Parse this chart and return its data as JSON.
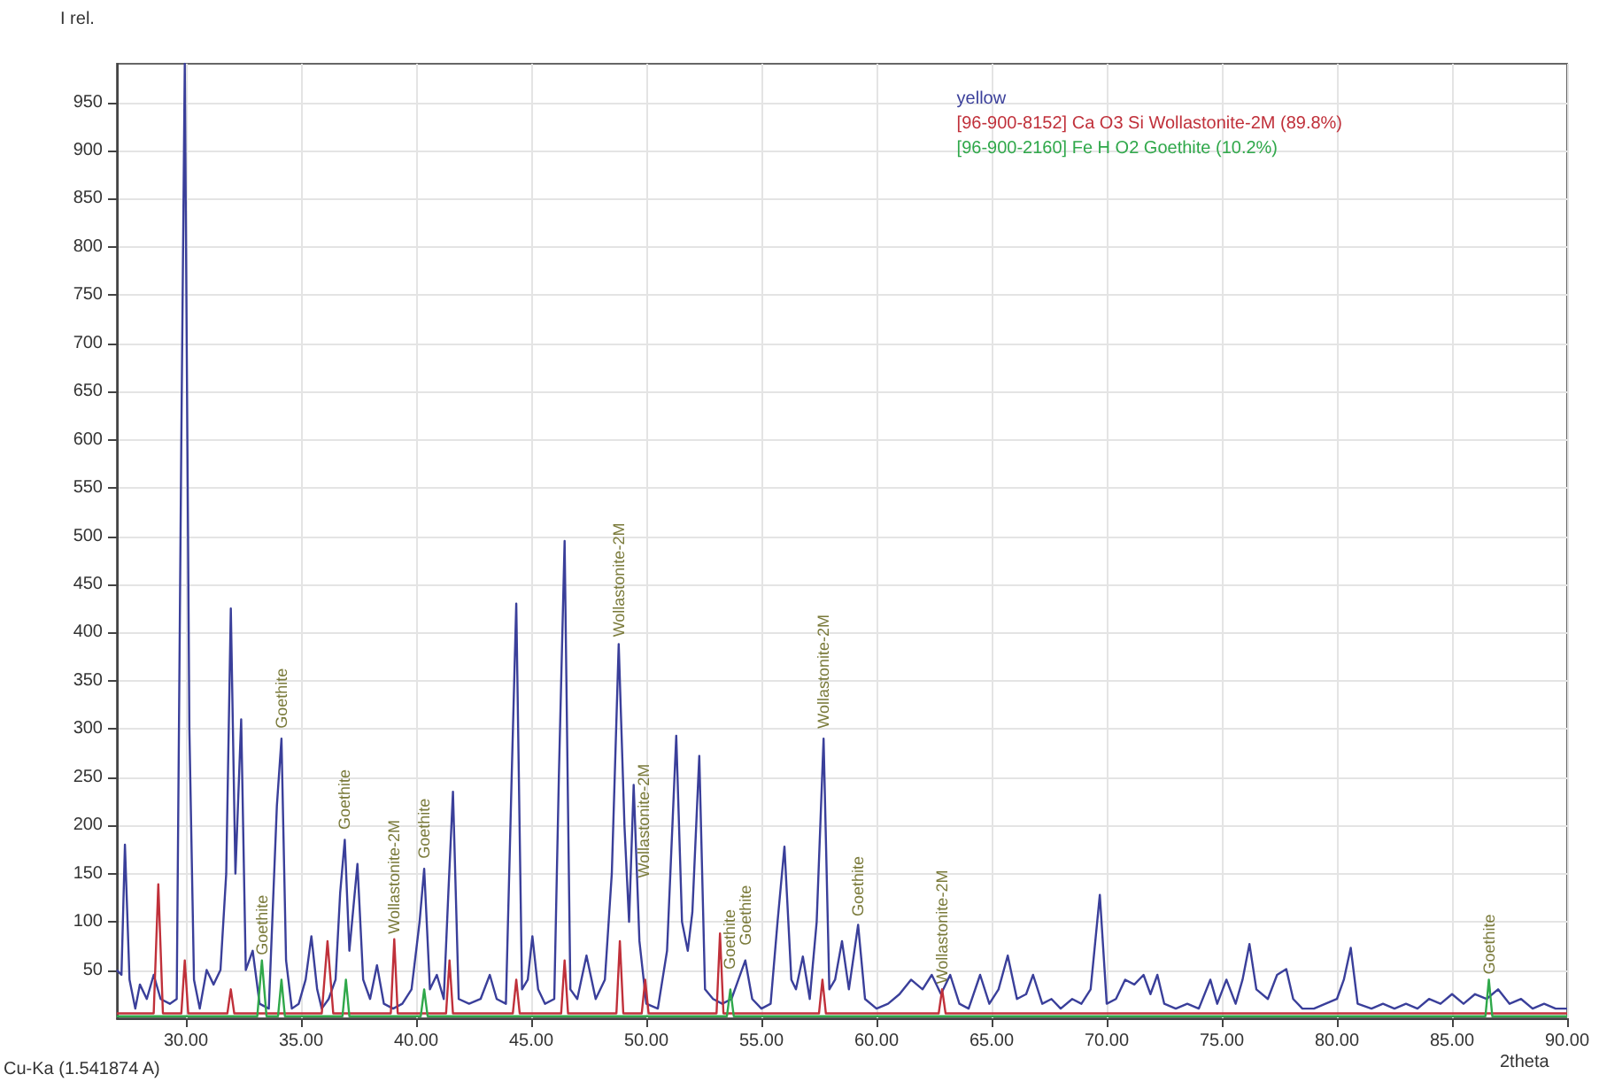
{
  "chart_data": {
    "type": "line",
    "ylabel": "I rel.",
    "xlabel": "2theta",
    "xlim": [
      27,
      90
    ],
    "ylim": [
      0,
      990
    ],
    "xticks": [
      {
        "value": 30,
        "label": "30.00"
      },
      {
        "value": 35,
        "label": "35.00"
      },
      {
        "value": 40,
        "label": "40.00"
      },
      {
        "value": 45,
        "label": "45.00"
      },
      {
        "value": 50,
        "label": "50.00"
      },
      {
        "value": 55,
        "label": "55.00"
      },
      {
        "value": 60,
        "label": "60.00"
      },
      {
        "value": 65,
        "label": "65.00"
      },
      {
        "value": 70,
        "label": "70.00"
      },
      {
        "value": 75,
        "label": "75.00"
      },
      {
        "value": 80,
        "label": "80.00"
      },
      {
        "value": 85,
        "label": "85.00"
      },
      {
        "value": 90,
        "label": "90.00"
      }
    ],
    "yticks": [
      50,
      100,
      150,
      200,
      250,
      300,
      350,
      400,
      450,
      500,
      550,
      600,
      650,
      700,
      750,
      800,
      850,
      900,
      950
    ],
    "grid": true,
    "legend": "top right",
    "marker": "none",
    "line_style": "solid",
    "series": [
      {
        "name": "yellow",
        "color": "#3a3f9a",
        "x": [
          27.0,
          27.2,
          27.35,
          27.55,
          27.8,
          28.0,
          28.3,
          28.6,
          28.9,
          29.3,
          29.6,
          29.8,
          29.95,
          30.15,
          30.35,
          30.6,
          30.9,
          31.2,
          31.5,
          31.75,
          31.95,
          32.15,
          32.4,
          32.6,
          32.9,
          33.2,
          33.6,
          33.95,
          34.15,
          34.35,
          34.6,
          34.9,
          35.2,
          35.45,
          35.7,
          35.9,
          36.2,
          36.5,
          36.7,
          36.9,
          37.1,
          37.45,
          37.7,
          38.0,
          38.3,
          38.6,
          39.0,
          39.4,
          39.8,
          40.15,
          40.35,
          40.6,
          40.9,
          41.2,
          41.4,
          41.6,
          41.85,
          42.3,
          42.8,
          43.2,
          43.5,
          43.9,
          44.15,
          44.35,
          44.6,
          44.85,
          45.05,
          45.3,
          45.6,
          46.0,
          46.2,
          46.45,
          46.7,
          47.0,
          47.4,
          47.8,
          48.2,
          48.5,
          48.8,
          49.05,
          49.25,
          49.45,
          49.7,
          50.0,
          50.5,
          50.9,
          51.3,
          51.55,
          51.8,
          52.0,
          52.3,
          52.55,
          52.9,
          53.3,
          53.7,
          54.0,
          54.3,
          54.6,
          55.0,
          55.4,
          55.7,
          56.0,
          56.3,
          56.5,
          56.8,
          57.1,
          57.4,
          57.7,
          57.95,
          58.2,
          58.5,
          58.8,
          59.2,
          59.5,
          60.0,
          60.5,
          61.0,
          61.5,
          62.0,
          62.4,
          62.8,
          63.2,
          63.6,
          64.0,
          64.5,
          64.9,
          65.3,
          65.7,
          66.1,
          66.5,
          66.8,
          67.2,
          67.6,
          68.0,
          68.5,
          68.9,
          69.3,
          69.7,
          70.0,
          70.4,
          70.8,
          71.2,
          71.6,
          71.9,
          72.2,
          72.5,
          73.0,
          73.5,
          74.0,
          74.5,
          74.8,
          75.2,
          75.6,
          75.9,
          76.2,
          76.5,
          77.0,
          77.4,
          77.8,
          78.1,
          78.5,
          79.0,
          79.5,
          80.0,
          80.3,
          80.6,
          80.9,
          81.5,
          82.0,
          82.5,
          83.0,
          83.5,
          84.0,
          84.5,
          85.0,
          85.5,
          86.0,
          86.5,
          87.0,
          87.5,
          88.0,
          88.5,
          89.0,
          89.5,
          90.0
        ],
        "values": [
          50,
          45,
          180,
          40,
          10,
          35,
          20,
          45,
          20,
          15,
          20,
          600,
          990,
          300,
          40,
          10,
          50,
          35,
          50,
          150,
          425,
          150,
          310,
          50,
          70,
          15,
          10,
          220,
          290,
          60,
          10,
          15,
          40,
          85,
          30,
          10,
          20,
          40,
          130,
          185,
          70,
          160,
          40,
          20,
          55,
          15,
          10,
          15,
          30,
          100,
          155,
          30,
          45,
          20,
          130,
          235,
          20,
          15,
          20,
          45,
          20,
          15,
          250,
          430,
          30,
          40,
          85,
          30,
          15,
          20,
          250,
          495,
          30,
          20,
          65,
          20,
          40,
          150,
          388,
          200,
          100,
          242,
          80,
          15,
          10,
          70,
          293,
          100,
          70,
          110,
          272,
          30,
          20,
          15,
          20,
          40,
          60,
          20,
          10,
          15,
          100,
          178,
          40,
          30,
          64,
          20,
          100,
          290,
          30,
          40,
          80,
          30,
          97,
          20,
          10,
          15,
          25,
          40,
          30,
          45,
          25,
          45,
          15,
          10,
          45,
          15,
          30,
          65,
          20,
          25,
          45,
          15,
          20,
          10,
          20,
          15,
          30,
          128,
          15,
          20,
          40,
          35,
          45,
          25,
          45,
          15,
          10,
          15,
          10,
          40,
          15,
          40,
          15,
          40,
          77,
          30,
          20,
          45,
          51,
          20,
          10,
          10,
          15,
          20,
          40,
          73,
          15,
          10,
          15,
          10,
          15,
          10,
          20,
          15,
          25,
          15,
          25,
          20,
          30,
          15,
          20,
          10,
          15,
          10,
          10
        ]
      },
      {
        "name": "[96-900-8152] Ca O3 Si Wollastonite-2M (89.8%)",
        "color": "#c0303a",
        "x": [
          27.0,
          28.6,
          28.8,
          29.0,
          29.8,
          29.95,
          30.1,
          31.8,
          31.95,
          32.1,
          35.9,
          36.15,
          36.4,
          38.9,
          39.05,
          39.2,
          41.3,
          41.45,
          41.6,
          44.2,
          44.35,
          44.5,
          46.3,
          46.45,
          46.6,
          48.7,
          48.85,
          49.0,
          49.8,
          49.95,
          50.1,
          53.05,
          53.2,
          53.35,
          57.5,
          57.65,
          57.8,
          62.7,
          62.85,
          63.0,
          90.0
        ],
        "values": [
          5,
          5,
          139,
          5,
          5,
          60,
          5,
          5,
          30,
          5,
          5,
          80,
          5,
          5,
          82,
          5,
          5,
          60,
          5,
          5,
          40,
          5,
          5,
          60,
          5,
          5,
          80,
          5,
          5,
          40,
          5,
          5,
          88,
          5,
          5,
          40,
          5,
          5,
          30,
          5,
          5
        ]
      },
      {
        "name": "[96-900-2160] Fe H O2 Goethite (10.2%)",
        "color": "#2fa84a",
        "x": [
          27.0,
          33.1,
          33.3,
          33.5,
          34.0,
          34.15,
          34.3,
          36.8,
          36.95,
          37.1,
          40.2,
          40.35,
          40.5,
          53.5,
          53.65,
          53.8,
          86.45,
          86.6,
          86.75,
          90.0
        ],
        "values": [
          2,
          2,
          60,
          2,
          2,
          40,
          2,
          2,
          40,
          2,
          2,
          30,
          2,
          2,
          30,
          2,
          2,
          40,
          2,
          2
        ]
      }
    ],
    "annotations": [
      {
        "text": "Goethite",
        "x": 33.3,
        "y": 60
      },
      {
        "text": "Goethite",
        "x": 34.15,
        "y": 295
      },
      {
        "text": "Goethite",
        "x": 36.9,
        "y": 190
      },
      {
        "text": "Wollastonite-2M",
        "x": 39.05,
        "y": 82
      },
      {
        "text": "Goethite",
        "x": 40.35,
        "y": 160
      },
      {
        "text": "Wollastonite-2M",
        "x": 48.8,
        "y": 390
      },
      {
        "text": "Wollastonite-2M",
        "x": 49.9,
        "y": 140
      },
      {
        "text": "Goethite",
        "x": 53.6,
        "y": 45
      },
      {
        "text": "Goethite",
        "x": 54.3,
        "y": 70
      },
      {
        "text": "Wollastonite-2M",
        "x": 57.7,
        "y": 295
      },
      {
        "text": "Goethite",
        "x": 59.2,
        "y": 100
      },
      {
        "text": "Wollastonite-2M",
        "x": 62.85,
        "y": 30
      },
      {
        "text": "Goethite",
        "x": 86.6,
        "y": 40
      },
      "Cu-Ka (1.541874 A)"
    ]
  }
}
